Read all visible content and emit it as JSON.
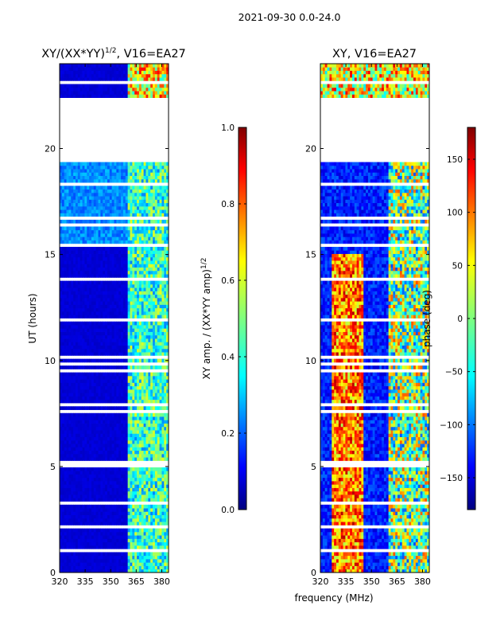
{
  "figure": {
    "suptitle": "2021-09-30 0.0-24.0",
    "shared_xlabel": "frequency (MHz)"
  },
  "chart_data": [
    {
      "type": "heatmap",
      "title_main": "XY/(XX*YY)",
      "title_sup": "1/2",
      "title_suffix": ", V16=EA27",
      "xlabel": "",
      "ylabel": "UT (hours)",
      "xlim": [
        320,
        384
      ],
      "ylim": [
        0,
        24
      ],
      "xticks": [
        "320",
        "335",
        "350",
        "365",
        "380"
      ],
      "xtick_values": [
        320,
        335,
        350,
        365,
        380
      ],
      "yticks": [
        "0",
        "5",
        "10",
        "15",
        "20"
      ],
      "ytick_values": [
        0,
        5,
        10,
        15,
        20
      ],
      "colormap": "jet",
      "colorbar": {
        "label_main": "XY amp. / (XX*YY amp)",
        "label_sup": "1/2",
        "range": [
          0.0,
          1.0
        ],
        "ticks": [
          "0.0",
          "0.2",
          "0.4",
          "0.6",
          "0.8",
          "1.0"
        ],
        "tick_values": [
          0.0,
          0.2,
          0.4,
          0.6,
          0.8,
          1.0
        ]
      },
      "data_gaps_hours": [
        [
          19.3,
          22.4
        ]
      ],
      "background_value": 0.08
    },
    {
      "type": "heatmap",
      "title_main": "XY, V16=EA27",
      "xlabel": "",
      "ylabel": "",
      "xlim": [
        320,
        384
      ],
      "ylim": [
        0,
        24
      ],
      "xticks": [
        "320",
        "335",
        "350",
        "365",
        "380"
      ],
      "xtick_values": [
        320,
        335,
        350,
        365,
        380
      ],
      "yticks": [
        "0",
        "5",
        "10",
        "15",
        "20"
      ],
      "ytick_values": [
        0,
        5,
        10,
        15,
        20
      ],
      "colormap": "jet",
      "colorbar": {
        "label_main": "phase (deg)",
        "range": [
          -180,
          180
        ],
        "ticks": [
          "−150",
          "−100",
          "−50",
          "0",
          "50",
          "100",
          "150"
        ],
        "tick_values": [
          -150,
          -100,
          -50,
          0,
          50,
          100,
          150
        ]
      },
      "data_gaps_hours": [
        [
          19.3,
          22.4
        ]
      ],
      "background_value": -150
    }
  ],
  "colors": {
    "jet_0": "#00007f",
    "jet_1": "#0000ff",
    "jet_2": "#007fff",
    "jet_3": "#00ffff",
    "jet_4": "#7fff7f",
    "jet_5": "#ffff00",
    "jet_6": "#ff7f00",
    "jet_7": "#ff0000",
    "jet_8": "#7f0000"
  }
}
